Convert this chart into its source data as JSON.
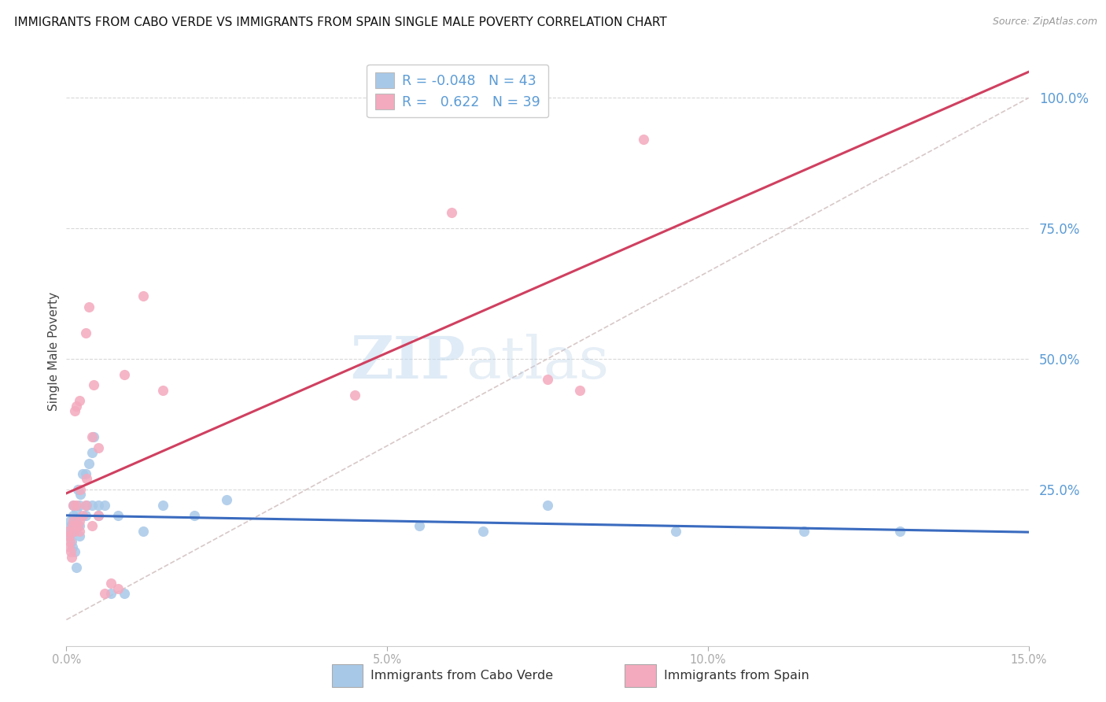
{
  "title": "IMMIGRANTS FROM CABO VERDE VS IMMIGRANTS FROM SPAIN SINGLE MALE POVERTY CORRELATION CHART",
  "source": "Source: ZipAtlas.com",
  "ylabel": "Single Male Poverty",
  "cabo_verde_R": -0.048,
  "cabo_verde_N": 43,
  "spain_R": 0.622,
  "spain_N": 39,
  "cabo_verde_color": "#a8c8e8",
  "spain_color": "#f4aabe",
  "cabo_verde_line_color": "#3a6bbf",
  "spain_line_color": "#d04060",
  "diag_color": "#d8c8c8",
  "right_tick_color": "#5b9bd5",
  "legend_text_color": "#5b9bd5",
  "xmin": 0.0,
  "xmax": 0.15,
  "ymin": -0.05,
  "ymax": 1.08,
  "yticks": [
    0.0,
    0.25,
    0.5,
    0.75,
    1.0
  ],
  "yticklabels": [
    "",
    "25.0%",
    "50.0%",
    "75.0%",
    "100.0%"
  ],
  "xticks": [
    0.0,
    0.05,
    0.1,
    0.15
  ],
  "xticklabels": [
    "0.0%",
    "5.0%",
    "10.0%",
    "15.0%"
  ],
  "grid_color": "#d8d8d8",
  "cabo_verde_x": [
    0.0003,
    0.0005,
    0.0006,
    0.0007,
    0.0008,
    0.0009,
    0.001,
    0.001,
    0.001,
    0.0012,
    0.0013,
    0.0015,
    0.0015,
    0.0016,
    0.0018,
    0.002,
    0.002,
    0.002,
    0.0022,
    0.0025,
    0.003,
    0.003,
    0.0032,
    0.0035,
    0.004,
    0.004,
    0.0042,
    0.005,
    0.005,
    0.006,
    0.007,
    0.008,
    0.009,
    0.012,
    0.015,
    0.02,
    0.025,
    0.055,
    0.065,
    0.075,
    0.095,
    0.115,
    0.13
  ],
  "cabo_verde_y": [
    0.17,
    0.16,
    0.19,
    0.18,
    0.15,
    0.14,
    0.2,
    0.22,
    0.18,
    0.17,
    0.13,
    0.1,
    0.19,
    0.21,
    0.25,
    0.16,
    0.18,
    0.22,
    0.24,
    0.28,
    0.2,
    0.28,
    0.22,
    0.3,
    0.32,
    0.22,
    0.35,
    0.2,
    0.22,
    0.22,
    0.05,
    0.2,
    0.05,
    0.17,
    0.22,
    0.2,
    0.23,
    0.18,
    0.17,
    0.22,
    0.17,
    0.17,
    0.17
  ],
  "spain_x": [
    0.0003,
    0.0004,
    0.0005,
    0.0006,
    0.0007,
    0.0008,
    0.0009,
    0.001,
    0.001,
    0.0012,
    0.0013,
    0.0015,
    0.0016,
    0.0018,
    0.002,
    0.002,
    0.002,
    0.0022,
    0.0025,
    0.003,
    0.003,
    0.0032,
    0.0035,
    0.004,
    0.004,
    0.0042,
    0.005,
    0.006,
    0.007,
    0.008,
    0.009,
    0.012,
    0.015,
    0.045,
    0.06,
    0.075,
    0.08,
    0.09,
    0.005
  ],
  "spain_y": [
    0.17,
    0.16,
    0.14,
    0.15,
    0.13,
    0.12,
    0.18,
    0.19,
    0.22,
    0.17,
    0.4,
    0.41,
    0.22,
    0.18,
    0.17,
    0.42,
    0.19,
    0.25,
    0.2,
    0.22,
    0.55,
    0.27,
    0.6,
    0.35,
    0.18,
    0.45,
    0.33,
    0.05,
    0.07,
    0.06,
    0.47,
    0.62,
    0.44,
    0.43,
    0.78,
    0.46,
    0.44,
    0.92,
    0.2
  ]
}
